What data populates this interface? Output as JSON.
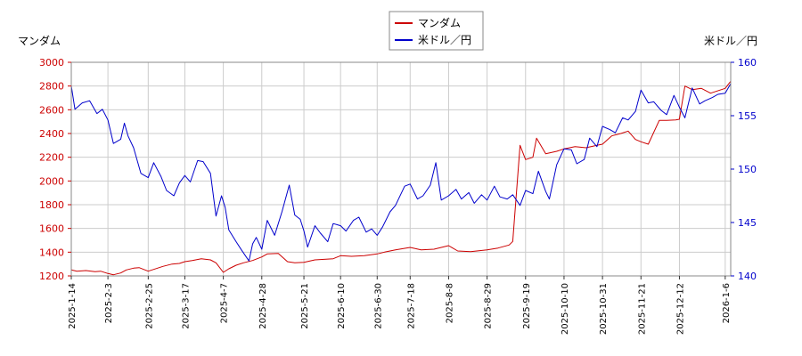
{
  "chart_data": {
    "type": "line",
    "legend": {
      "placement": "top-center",
      "entries": [
        {
          "label": "マンダム",
          "color": "#cc0000"
        },
        {
          "label": "米ドル／円",
          "color": "#0000cc"
        }
      ]
    },
    "left_axis": {
      "label": "マンダム",
      "color": "#cc0000",
      "ylim": [
        1200,
        3000
      ],
      "ticks": [
        "1200",
        "1400",
        "1600",
        "1800",
        "2000",
        "2200",
        "2400",
        "2600",
        "2800",
        "3000"
      ]
    },
    "right_axis": {
      "label": "米ドル／円",
      "color": "#0000cc",
      "ylim": [
        140,
        160
      ],
      "ticks": [
        "140",
        "145",
        "150",
        "155",
        "160"
      ]
    },
    "x_axis": {
      "range": [
        "2025-01-14",
        "2026-01-09"
      ],
      "ticks": [
        "2025-1-14",
        "2025-2-3",
        "2025-2-25",
        "2025-3-17",
        "2025-4-7",
        "2025-4-28",
        "2025-5-21",
        "2025-6-10",
        "2025-6-30",
        "2025-7-18",
        "2025-8-8",
        "2025-8-29",
        "2025-9-19",
        "2025-10-10",
        "2025-10-31",
        "2025-11-21",
        "2025-12-12",
        "2026-1-6"
      ]
    },
    "grid": true,
    "series": [
      {
        "name": "マンダム",
        "axis": "left",
        "color": "#cc0000",
        "points": [
          [
            "2025-01-14",
            1250
          ],
          [
            "2025-01-17",
            1240
          ],
          [
            "2025-01-22",
            1245
          ],
          [
            "2025-01-27",
            1235
          ],
          [
            "2025-01-30",
            1240
          ],
          [
            "2025-02-03",
            1220
          ],
          [
            "2025-02-06",
            1210
          ],
          [
            "2025-02-10",
            1225
          ],
          [
            "2025-02-13",
            1250
          ],
          [
            "2025-02-17",
            1265
          ],
          [
            "2025-02-20",
            1270
          ],
          [
            "2025-02-25",
            1240
          ],
          [
            "2025-02-28",
            1255
          ],
          [
            "2025-03-05",
            1280
          ],
          [
            "2025-03-10",
            1300
          ],
          [
            "2025-03-14",
            1305
          ],
          [
            "2025-03-17",
            1320
          ],
          [
            "2025-03-21",
            1330
          ],
          [
            "2025-03-26",
            1345
          ],
          [
            "2025-03-31",
            1335
          ],
          [
            "2025-04-03",
            1310
          ],
          [
            "2025-04-07",
            1230
          ],
          [
            "2025-04-10",
            1260
          ],
          [
            "2025-04-14",
            1290
          ],
          [
            "2025-04-18",
            1310
          ],
          [
            "2025-04-23",
            1330
          ],
          [
            "2025-04-28",
            1360
          ],
          [
            "2025-05-01",
            1385
          ],
          [
            "2025-05-07",
            1390
          ],
          [
            "2025-05-12",
            1320
          ],
          [
            "2025-05-16",
            1310
          ],
          [
            "2025-05-21",
            1315
          ],
          [
            "2025-05-27",
            1335
          ],
          [
            "2025-06-02",
            1340
          ],
          [
            "2025-06-06",
            1345
          ],
          [
            "2025-06-10",
            1370
          ],
          [
            "2025-06-16",
            1365
          ],
          [
            "2025-06-23",
            1370
          ],
          [
            "2025-06-30",
            1385
          ],
          [
            "2025-07-04",
            1400
          ],
          [
            "2025-07-10",
            1420
          ],
          [
            "2025-07-18",
            1440
          ],
          [
            "2025-07-24",
            1420
          ],
          [
            "2025-07-31",
            1425
          ],
          [
            "2025-08-08",
            1455
          ],
          [
            "2025-08-13",
            1410
          ],
          [
            "2025-08-20",
            1405
          ],
          [
            "2025-08-29",
            1420
          ],
          [
            "2025-09-04",
            1435
          ],
          [
            "2025-09-10",
            1460
          ],
          [
            "2025-09-12",
            1490
          ],
          [
            "2025-09-16",
            2300
          ],
          [
            "2025-09-19",
            2180
          ],
          [
            "2025-09-23",
            2200
          ],
          [
            "2025-09-25",
            2360
          ],
          [
            "2025-09-30",
            2230
          ],
          [
            "2025-10-06",
            2250
          ],
          [
            "2025-10-10",
            2270
          ],
          [
            "2025-10-16",
            2290
          ],
          [
            "2025-10-22",
            2280
          ],
          [
            "2025-10-28",
            2300
          ],
          [
            "2025-10-31",
            2310
          ],
          [
            "2025-11-05",
            2380
          ],
          [
            "2025-11-10",
            2400
          ],
          [
            "2025-11-14",
            2420
          ],
          [
            "2025-11-18",
            2350
          ],
          [
            "2025-11-21",
            2330
          ],
          [
            "2025-11-25",
            2310
          ],
          [
            "2025-12-01",
            2510
          ],
          [
            "2025-12-05",
            2510
          ],
          [
            "2025-12-10",
            2515
          ],
          [
            "2025-12-12",
            2520
          ],
          [
            "2025-12-15",
            2800
          ],
          [
            "2025-12-19",
            2770
          ],
          [
            "2025-12-24",
            2780
          ],
          [
            "2025-12-29",
            2740
          ],
          [
            "2026-01-06",
            2780
          ],
          [
            "2026-01-09",
            2840
          ]
        ]
      },
      {
        "name": "米ドル／円",
        "axis": "right",
        "color": "#0000cc",
        "points": [
          [
            "2025-01-14",
            157.8
          ],
          [
            "2025-01-16",
            155.6
          ],
          [
            "2025-01-20",
            156.2
          ],
          [
            "2025-01-24",
            156.4
          ],
          [
            "2025-01-28",
            155.2
          ],
          [
            "2025-01-31",
            155.6
          ],
          [
            "2025-02-03",
            154.6
          ],
          [
            "2025-02-06",
            152.4
          ],
          [
            "2025-02-10",
            152.8
          ],
          [
            "2025-02-12",
            154.3
          ],
          [
            "2025-02-14",
            153.1
          ],
          [
            "2025-02-17",
            152.0
          ],
          [
            "2025-02-21",
            149.6
          ],
          [
            "2025-02-25",
            149.2
          ],
          [
            "2025-02-28",
            150.6
          ],
          [
            "2025-03-04",
            149.3
          ],
          [
            "2025-03-07",
            148.0
          ],
          [
            "2025-03-11",
            147.5
          ],
          [
            "2025-03-14",
            148.7
          ],
          [
            "2025-03-17",
            149.4
          ],
          [
            "2025-03-20",
            148.8
          ],
          [
            "2025-03-24",
            150.8
          ],
          [
            "2025-03-27",
            150.7
          ],
          [
            "2025-03-31",
            149.6
          ],
          [
            "2025-04-03",
            145.6
          ],
          [
            "2025-04-06",
            147.5
          ],
          [
            "2025-04-08",
            146.4
          ],
          [
            "2025-04-10",
            144.3
          ],
          [
            "2025-04-14",
            143.2
          ],
          [
            "2025-04-17",
            142.4
          ],
          [
            "2025-04-21",
            141.4
          ],
          [
            "2025-04-23",
            143.0
          ],
          [
            "2025-04-25",
            143.6
          ],
          [
            "2025-04-28",
            142.5
          ],
          [
            "2025-05-01",
            145.2
          ],
          [
            "2025-05-05",
            143.8
          ],
          [
            "2025-05-09",
            146.0
          ],
          [
            "2025-05-13",
            148.5
          ],
          [
            "2025-05-16",
            145.7
          ],
          [
            "2025-05-19",
            145.3
          ],
          [
            "2025-05-21",
            144.2
          ],
          [
            "2025-05-23",
            142.7
          ],
          [
            "2025-05-27",
            144.7
          ],
          [
            "2025-05-30",
            144.0
          ],
          [
            "2025-06-03",
            143.2
          ],
          [
            "2025-06-06",
            144.9
          ],
          [
            "2025-06-10",
            144.7
          ],
          [
            "2025-06-13",
            144.2
          ],
          [
            "2025-06-17",
            145.2
          ],
          [
            "2025-06-20",
            145.5
          ],
          [
            "2025-06-24",
            144.1
          ],
          [
            "2025-06-27",
            144.4
          ],
          [
            "2025-06-30",
            143.8
          ],
          [
            "2025-07-03",
            144.6
          ],
          [
            "2025-07-07",
            146.0
          ],
          [
            "2025-07-10",
            146.6
          ],
          [
            "2025-07-15",
            148.4
          ],
          [
            "2025-07-18",
            148.6
          ],
          [
            "2025-07-22",
            147.2
          ],
          [
            "2025-07-25",
            147.5
          ],
          [
            "2025-07-29",
            148.5
          ],
          [
            "2025-08-01",
            150.6
          ],
          [
            "2025-08-04",
            147.1
          ],
          [
            "2025-08-08",
            147.5
          ],
          [
            "2025-08-12",
            148.1
          ],
          [
            "2025-08-15",
            147.2
          ],
          [
            "2025-08-19",
            147.8
          ],
          [
            "2025-08-22",
            146.8
          ],
          [
            "2025-08-26",
            147.6
          ],
          [
            "2025-08-29",
            147.1
          ],
          [
            "2025-09-02",
            148.4
          ],
          [
            "2025-09-05",
            147.4
          ],
          [
            "2025-09-09",
            147.2
          ],
          [
            "2025-09-12",
            147.6
          ],
          [
            "2025-09-16",
            146.6
          ],
          [
            "2025-09-19",
            148.0
          ],
          [
            "2025-09-23",
            147.7
          ],
          [
            "2025-09-26",
            149.8
          ],
          [
            "2025-09-30",
            147.9
          ],
          [
            "2025-10-02",
            147.2
          ],
          [
            "2025-10-06",
            150.4
          ],
          [
            "2025-10-10",
            151.9
          ],
          [
            "2025-10-14",
            151.8
          ],
          [
            "2025-10-17",
            150.5
          ],
          [
            "2025-10-21",
            150.9
          ],
          [
            "2025-10-24",
            152.9
          ],
          [
            "2025-10-28",
            152.1
          ],
          [
            "2025-10-31",
            154.0
          ],
          [
            "2025-11-04",
            153.7
          ],
          [
            "2025-11-07",
            153.4
          ],
          [
            "2025-11-11",
            154.8
          ],
          [
            "2025-11-14",
            154.6
          ],
          [
            "2025-11-18",
            155.4
          ],
          [
            "2025-11-21",
            157.4
          ],
          [
            "2025-11-25",
            156.2
          ],
          [
            "2025-11-28",
            156.3
          ],
          [
            "2025-12-02",
            155.5
          ],
          [
            "2025-12-05",
            155.1
          ],
          [
            "2025-12-09",
            156.9
          ],
          [
            "2025-12-12",
            155.8
          ],
          [
            "2025-12-15",
            154.8
          ],
          [
            "2025-12-19",
            157.6
          ],
          [
            "2025-12-23",
            156.1
          ],
          [
            "2025-12-26",
            156.4
          ],
          [
            "2025-12-30",
            156.7
          ],
          [
            "2026-01-02",
            157.0
          ],
          [
            "2026-01-06",
            157.1
          ],
          [
            "2026-01-09",
            158.0
          ]
        ]
      }
    ]
  }
}
